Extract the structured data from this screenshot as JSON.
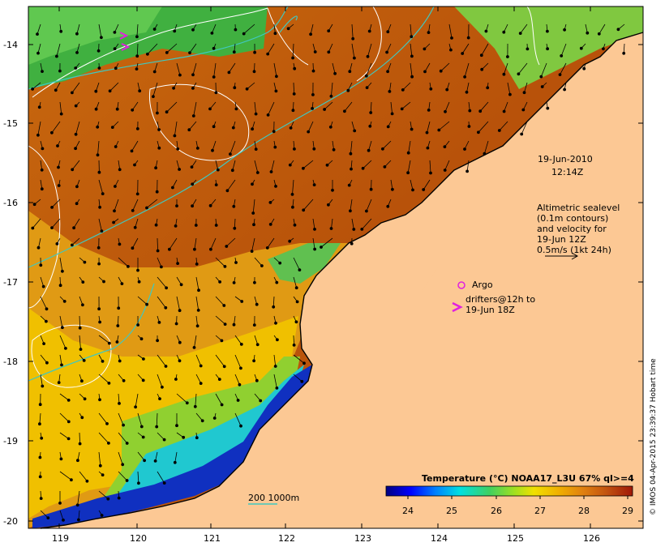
{
  "map": {
    "lat_ticks": [
      "-14",
      "-15",
      "-16",
      "-17",
      "-18",
      "-19",
      "-20"
    ],
    "lon_ticks": [
      "119",
      "120",
      "121",
      "122",
      "123",
      "124",
      "125",
      "126"
    ],
    "date_line1": "19-Jun-2010",
    "date_line2": "12:14Z",
    "altimetry_lines": [
      "Altimetric sealevel",
      "(0.1m contours)",
      "and velocity for",
      "19-Jun 12Z",
      "0.5m/s (1kt 24h)"
    ],
    "argo_label": "Argo",
    "drifter_lines": [
      "drifters@12h to",
      "19-Jun 18Z"
    ],
    "bathy_label": "200  1000m",
    "colorbar_title": "Temperature (°C) NOAA17_L3U 67% ql>=4",
    "colorbar_ticks": [
      "24",
      "25",
      "26",
      "27",
      "28",
      "29"
    ],
    "credit": "© IMOS 04-Apr-2015 23:39:37 Hobart time",
    "colors": {
      "land": "#fcc894",
      "warm": "#c86414",
      "hot": "#b4500a",
      "bathy": "#40c8c0",
      "argo": "#e020e0"
    }
  }
}
